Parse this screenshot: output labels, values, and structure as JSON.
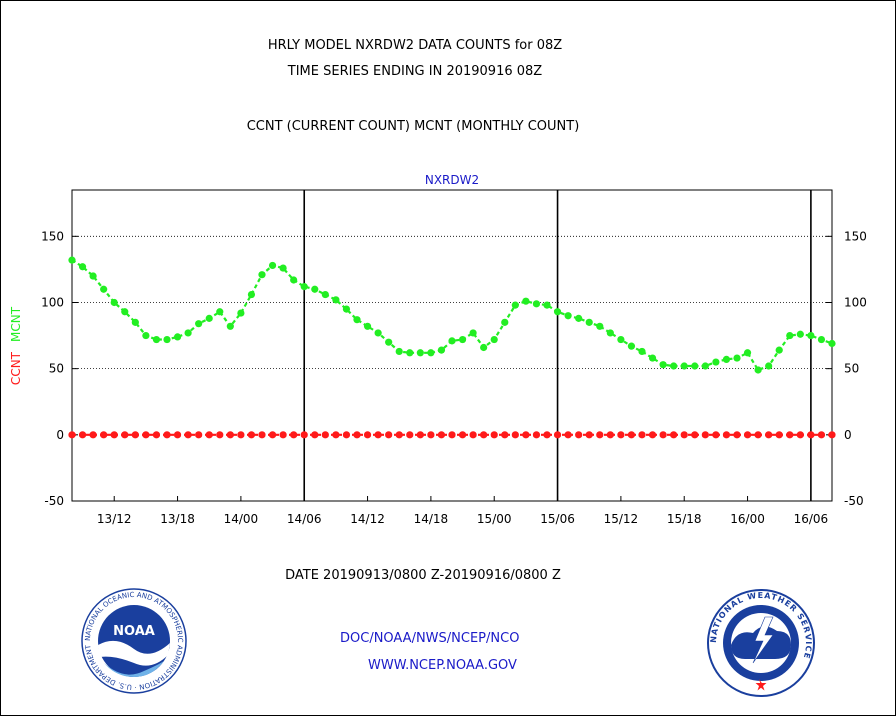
{
  "titles": {
    "line1": "HRLY MODEL NXRDW2 DATA COUNTS for 08Z",
    "line2": "TIME SERIES ENDING IN 20190916 08Z",
    "subtitle": "CCNT (CURRENT COUNT) MCNT (MONTHLY COUNT)"
  },
  "footer": {
    "org": "DOC/NOAA/NWS/NCEP/NCO",
    "url": "WWW.NCEP.NOAA.GOV"
  },
  "logos": {
    "left": {
      "center_text": "NOAA",
      "ring_text": "NATIONAL OCEANIC AND ATMOSPHERIC ADMINISTRATION · U.S. DEPARTMENT OF COMMERCE"
    },
    "right": {
      "ring_text": "NATIONAL WEATHER SERVICE"
    }
  },
  "colors": {
    "mcnt": "#22ee22",
    "ccnt": "#ff1a1a",
    "label_blue": "#1a1ac8",
    "axis": "#000000"
  },
  "chart_data": {
    "type": "line",
    "plot_label": "NXRDW2",
    "ylabel_parts": [
      {
        "text": "CCNT",
        "color": "#ff1a1a"
      },
      {
        "text": "MCNT",
        "color": "#22ee22"
      }
    ],
    "xlabel": "DATE 20190913/0800 Z-20190916/0800 Z",
    "xlim": [
      0,
      72
    ],
    "ylim": [
      -50,
      185
    ],
    "yticks": [
      -50,
      0,
      50,
      100,
      150
    ],
    "yticks_right": [
      -50,
      0,
      50,
      100,
      150
    ],
    "grid_y": [
      50,
      100,
      150
    ],
    "xticks": [
      {
        "x": 4,
        "label": "13/12"
      },
      {
        "x": 10,
        "label": "13/18"
      },
      {
        "x": 16,
        "label": "14/00"
      },
      {
        "x": 22,
        "label": "14/06"
      },
      {
        "x": 28,
        "label": "14/12"
      },
      {
        "x": 34,
        "label": "14/18"
      },
      {
        "x": 40,
        "label": "15/00"
      },
      {
        "x": 46,
        "label": "15/06"
      },
      {
        "x": 52,
        "label": "15/12"
      },
      {
        "x": 58,
        "label": "15/18"
      },
      {
        "x": 64,
        "label": "16/00"
      },
      {
        "x": 70,
        "label": "16/06"
      }
    ],
    "day_lines": [
      22,
      46,
      70
    ],
    "series": [
      {
        "name": "MCNT",
        "color": "#22ee22",
        "values": [
          132,
          127,
          120,
          110,
          100,
          93,
          85,
          75,
          72,
          72,
          74,
          77,
          84,
          88,
          93,
          82,
          92,
          106,
          121,
          128,
          126,
          117,
          112,
          110,
          106,
          102,
          95,
          87,
          82,
          77,
          70,
          63,
          62,
          62,
          62,
          64,
          71,
          72,
          77,
          66,
          72,
          85,
          98,
          101,
          99,
          98,
          93,
          90,
          88,
          85,
          82,
          77,
          72,
          67,
          63,
          58,
          53,
          52,
          52,
          52,
          52,
          55,
          57,
          58,
          62,
          49,
          52,
          64,
          75,
          76,
          75,
          72,
          69
        ]
      },
      {
        "name": "CCNT",
        "color": "#ff1a1a",
        "values": [
          0,
          0,
          0,
          0,
          0,
          0,
          0,
          0,
          0,
          0,
          0,
          0,
          0,
          0,
          0,
          0,
          0,
          0,
          0,
          0,
          0,
          0,
          0,
          0,
          0,
          0,
          0,
          0,
          0,
          0,
          0,
          0,
          0,
          0,
          0,
          0,
          0,
          0,
          0,
          0,
          0,
          0,
          0,
          0,
          0,
          0,
          0,
          0,
          0,
          0,
          0,
          0,
          0,
          0,
          0,
          0,
          0,
          0,
          0,
          0,
          0,
          0,
          0,
          0,
          0,
          0,
          0,
          0,
          0,
          0,
          0,
          0,
          0
        ]
      }
    ]
  }
}
